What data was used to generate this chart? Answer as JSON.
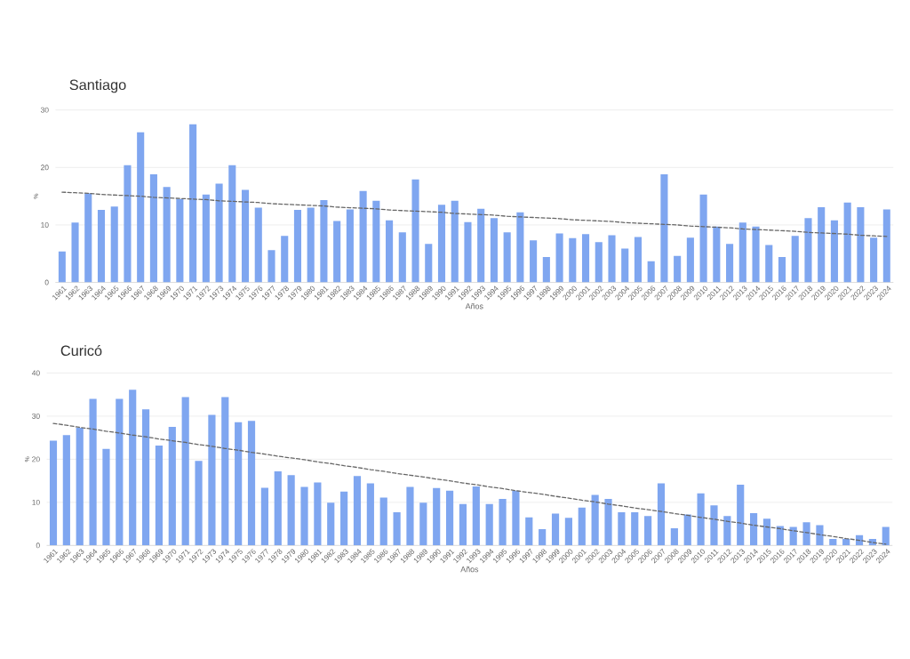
{
  "chart_data": [
    {
      "type": "bar",
      "title": "Santiago",
      "xlabel": "Años",
      "ylabel": "%",
      "grid": "y",
      "x": [
        1961,
        1962,
        1963,
        1964,
        1965,
        1966,
        1967,
        1968,
        1969,
        1970,
        1971,
        1972,
        1973,
        1974,
        1975,
        1976,
        1977,
        1978,
        1979,
        1980,
        1981,
        1982,
        1983,
        1984,
        1985,
        1986,
        1987,
        1988,
        1989,
        1990,
        1991,
        1992,
        1993,
        1994,
        1995,
        1996,
        1997,
        1998,
        1999,
        2000,
        2001,
        2002,
        2003,
        2004,
        2005,
        2006,
        2007,
        2008,
        2009,
        2010,
        2011,
        2012,
        2013,
        2014,
        2015,
        2016,
        2017,
        2018,
        2019,
        2020,
        2021,
        2022,
        2023,
        2024
      ],
      "xlim": [
        1960.5,
        2024.5
      ],
      "xticks": [
        1961,
        1962,
        1963,
        1964,
        1965,
        1966,
        1967,
        1968,
        1969,
        1970,
        1971,
        1972,
        1973,
        1974,
        1975,
        1976,
        1977,
        1978,
        1979,
        1980,
        1981,
        1982,
        1983,
        1984,
        1985,
        1986,
        1987,
        1988,
        1989,
        1990,
        1991,
        1992,
        1993,
        1994,
        1995,
        1996,
        1997,
        1998,
        1999,
        2000,
        2001,
        2002,
        2003,
        2004,
        2005,
        2006,
        2007,
        2008,
        2009,
        2010,
        2011,
        2012,
        2013,
        2014,
        2015,
        2016,
        2017,
        2018,
        2019,
        2020,
        2021,
        2022,
        2023,
        2024
      ],
      "ylim": [
        0,
        30
      ],
      "yticks": [
        0,
        10,
        20,
        30
      ],
      "series": [
        {
          "color": "#7fa6f0",
          "values": [
            5.4,
            10.4,
            15.5,
            12.6,
            13.2,
            20.4,
            26.1,
            18.8,
            16.6,
            14.5,
            27.5,
            15.3,
            17.2,
            20.4,
            16.1,
            13.0,
            5.6,
            8.1,
            12.6,
            13.0,
            14.3,
            10.7,
            12.7,
            15.9,
            14.2,
            10.8,
            8.7,
            17.9,
            6.7,
            13.5,
            14.2,
            10.5,
            12.8,
            11.2,
            8.7,
            12.2,
            7.3,
            4.4,
            8.5,
            7.7,
            8.4,
            7.0,
            8.2,
            5.9,
            7.9,
            3.7,
            18.8,
            4.6,
            7.8,
            15.3,
            9.7,
            6.7,
            10.4,
            9.7,
            6.5,
            4.4,
            8.1,
            11.2,
            13.1,
            10.8,
            13.9,
            13.1,
            7.8,
            12.7
          ]
        },
        {
          "type": "line",
          "color": "#666666",
          "line_style": "dashed",
          "values": [
            15.7,
            15.6,
            15.5,
            15.3,
            15.2,
            15.1,
            15.0,
            14.8,
            14.7,
            14.6,
            14.5,
            14.4,
            14.2,
            14.1,
            14.0,
            13.9,
            13.7,
            13.6,
            13.5,
            13.4,
            13.3,
            13.1,
            13.0,
            12.9,
            12.8,
            12.6,
            12.5,
            12.4,
            12.3,
            12.2,
            12.0,
            11.9,
            11.8,
            11.7,
            11.5,
            11.4,
            11.3,
            11.2,
            11.1,
            10.9,
            10.8,
            10.7,
            10.6,
            10.4,
            10.3,
            10.2,
            10.1,
            10.0,
            9.8,
            9.7,
            9.6,
            9.5,
            9.3,
            9.2,
            9.1,
            9.0,
            8.9,
            8.7,
            8.6,
            8.5,
            8.4,
            8.2,
            8.1,
            8.0
          ]
        }
      ]
    },
    {
      "type": "bar",
      "title": "Curicó",
      "xlabel": "Años",
      "ylabel": "%",
      "grid": "y",
      "x": [
        1961,
        1962,
        1963,
        1964,
        1965,
        1966,
        1967,
        1968,
        1969,
        1970,
        1971,
        1972,
        1973,
        1974,
        1975,
        1976,
        1977,
        1978,
        1979,
        1980,
        1981,
        1982,
        1983,
        1984,
        1985,
        1986,
        1987,
        1988,
        1989,
        1990,
        1991,
        1992,
        1993,
        1994,
        1995,
        1996,
        1997,
        1998,
        1999,
        2000,
        2001,
        2002,
        2003,
        2004,
        2005,
        2006,
        2007,
        2008,
        2009,
        2010,
        2011,
        2012,
        2013,
        2014,
        2015,
        2016,
        2017,
        2018,
        2019,
        2020,
        2021,
        2022,
        2023,
        2024
      ],
      "xlim": [
        1960.5,
        2024.5
      ],
      "xticks": [
        1961,
        1962,
        1963,
        1964,
        1965,
        1966,
        1967,
        1968,
        1969,
        1970,
        1971,
        1972,
        1973,
        1974,
        1975,
        1976,
        1977,
        1978,
        1979,
        1980,
        1981,
        1982,
        1983,
        1984,
        1985,
        1986,
        1987,
        1988,
        1989,
        1990,
        1991,
        1992,
        1993,
        1994,
        1995,
        1996,
        1997,
        1998,
        1999,
        2000,
        2001,
        2002,
        2003,
        2004,
        2005,
        2006,
        2007,
        2008,
        2009,
        2010,
        2011,
        2012,
        2013,
        2014,
        2015,
        2016,
        2017,
        2018,
        2019,
        2020,
        2021,
        2022,
        2023,
        2024
      ],
      "ylim": [
        0,
        40
      ],
      "yticks": [
        0,
        10,
        20,
        30,
        40
      ],
      "series": [
        {
          "color": "#7fa6f0",
          "values": [
            24.3,
            25.6,
            27.3,
            34.0,
            22.4,
            34.0,
            36.1,
            31.6,
            23.2,
            27.5,
            34.4,
            19.6,
            30.3,
            34.4,
            28.6,
            28.9,
            13.4,
            17.2,
            16.3,
            13.6,
            14.6,
            9.9,
            12.5,
            16.1,
            14.4,
            11.1,
            7.7,
            13.6,
            9.9,
            13.3,
            12.7,
            9.6,
            13.7,
            9.6,
            10.8,
            12.7,
            6.5,
            3.8,
            7.4,
            6.4,
            8.8,
            11.7,
            10.8,
            7.7,
            7.7,
            6.8,
            14.4,
            4.0,
            7.2,
            12.1,
            9.3,
            6.8,
            14.1,
            7.5,
            6.2,
            4.5,
            4.3,
            5.4,
            4.7,
            1.5,
            1.5,
            2.4,
            1.5,
            4.3
          ]
        },
        {
          "type": "line",
          "color": "#666666",
          "line_style": "dashed",
          "values": [
            28.3,
            27.9,
            27.4,
            27.0,
            26.5,
            26.1,
            25.6,
            25.2,
            24.7,
            24.3,
            23.9,
            23.4,
            23.0,
            22.5,
            22.1,
            21.6,
            21.2,
            20.7,
            20.3,
            19.9,
            19.4,
            19.0,
            18.5,
            18.1,
            17.6,
            17.2,
            16.7,
            16.3,
            15.9,
            15.4,
            15.0,
            14.5,
            14.1,
            13.6,
            13.2,
            12.7,
            12.3,
            11.9,
            11.4,
            11.0,
            10.5,
            10.1,
            9.6,
            9.2,
            8.7,
            8.3,
            7.9,
            7.4,
            7.0,
            6.5,
            6.1,
            5.6,
            5.2,
            4.7,
            4.3,
            3.9,
            3.4,
            3.0,
            2.5,
            2.1,
            1.6,
            1.2,
            0.7,
            0.3
          ]
        }
      ]
    }
  ]
}
